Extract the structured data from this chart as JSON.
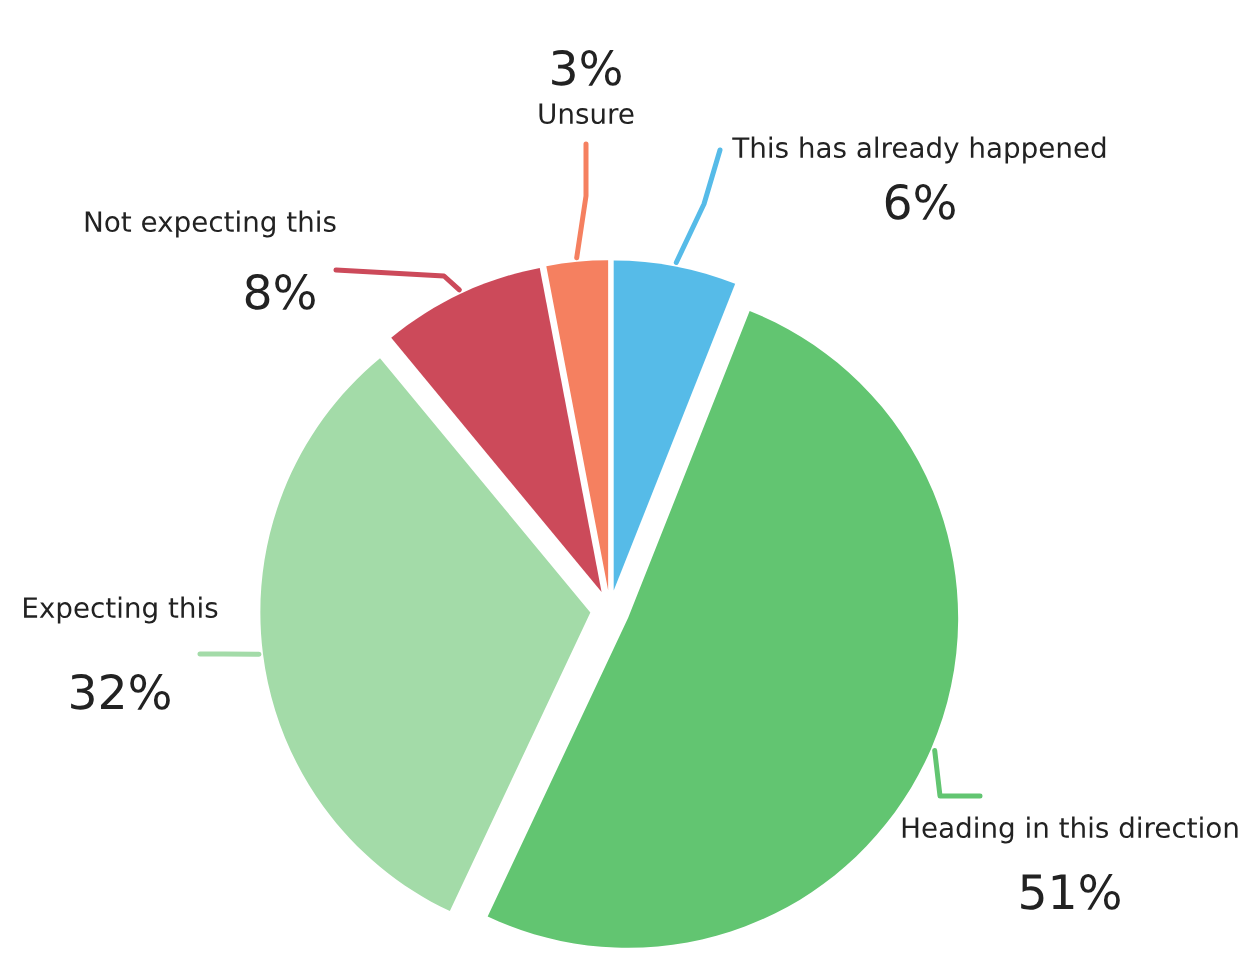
{
  "chart_data": {
    "type": "pie",
    "categories": [
      "This has already happened",
      "Heading in this direction",
      "Expecting this",
      "Not expecting this",
      "Unsure"
    ],
    "values": [
      6,
      51,
      32,
      8,
      3
    ],
    "value_labels": [
      "6%",
      "51%",
      "32%",
      "8%",
      "3%"
    ],
    "colors": [
      "#56bbe8",
      "#62c571",
      "#a3dba8",
      "#cc4a5a",
      "#f58060"
    ]
  }
}
